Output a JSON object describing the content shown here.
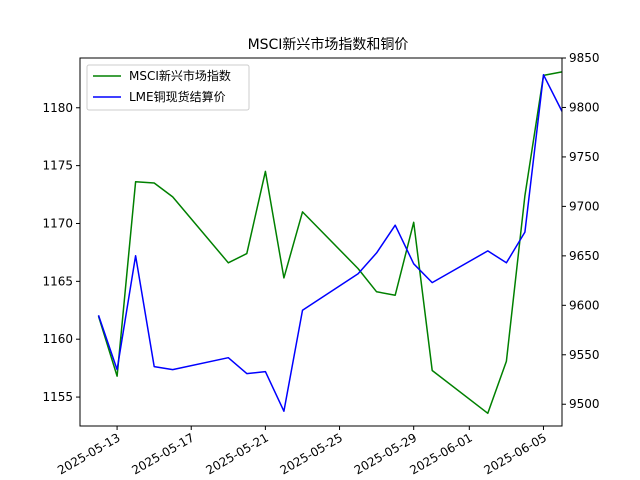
{
  "chart_data": {
    "type": "line",
    "title": "MSCI新兴市场指数和铜价",
    "xlabel": "",
    "ylabel_left": "",
    "ylabel_right": "",
    "x_ticks": [
      "2025-05-13",
      "2025-05-17",
      "2025-05-21",
      "2025-05-25",
      "2025-05-29",
      "2025-06-01",
      "2025-06-05"
    ],
    "xlim": [
      "2025-05-11",
      "2025-06-06"
    ],
    "y_left_ticks": [
      1155,
      1160,
      1165,
      1170,
      1175,
      1180
    ],
    "y_left_lim": [
      1152.5,
      1184.3
    ],
    "y_right_ticks": [
      9500,
      9550,
      9600,
      9650,
      9700,
      9750,
      9800,
      9850
    ],
    "y_right_lim": [
      9478,
      9850
    ],
    "legend_position": "upper-left",
    "grid": false,
    "series": [
      {
        "name": "MSCI新兴市场指数",
        "color": "#008000",
        "axis": "left",
        "x": [
          "2025-05-12",
          "2025-05-13",
          "2025-05-14",
          "2025-05-15",
          "2025-05-16",
          "2025-05-19",
          "2025-05-20",
          "2025-05-21",
          "2025-05-22",
          "2025-05-23",
          "2025-05-26",
          "2025-05-27",
          "2025-05-28",
          "2025-05-29",
          "2025-05-30",
          "2025-06-02",
          "2025-06-03",
          "2025-06-04",
          "2025-06-05",
          "2025-06-06"
        ],
        "values": [
          1162.0,
          1156.8,
          1173.6,
          1173.5,
          1172.3,
          1166.6,
          1167.4,
          1174.5,
          1165.3,
          1171.0,
          1166.1,
          1164.1,
          1163.8,
          1170.1,
          1157.3,
          1153.6,
          1158.1,
          1172.4,
          1182.8,
          1183.1
        ]
      },
      {
        "name": "LME铜现货结算价",
        "color": "#0000ff",
        "axis": "right",
        "x": [
          "2025-05-12",
          "2025-05-13",
          "2025-05-14",
          "2025-05-15",
          "2025-05-16",
          "2025-05-19",
          "2025-05-20",
          "2025-05-21",
          "2025-05-22",
          "2025-05-23",
          "2025-05-26",
          "2025-05-27",
          "2025-05-28",
          "2025-05-29",
          "2025-05-30",
          "2025-06-02",
          "2025-06-03",
          "2025-06-04",
          "2025-06-05",
          "2025-06-06"
        ],
        "values": [
          9590,
          9535,
          9650,
          9538,
          9535,
          9547,
          9531,
          9533,
          9493,
          9595,
          9632,
          9653,
          9681,
          9642,
          9623,
          9655,
          9643,
          9674,
          9833,
          9796
        ]
      }
    ]
  }
}
